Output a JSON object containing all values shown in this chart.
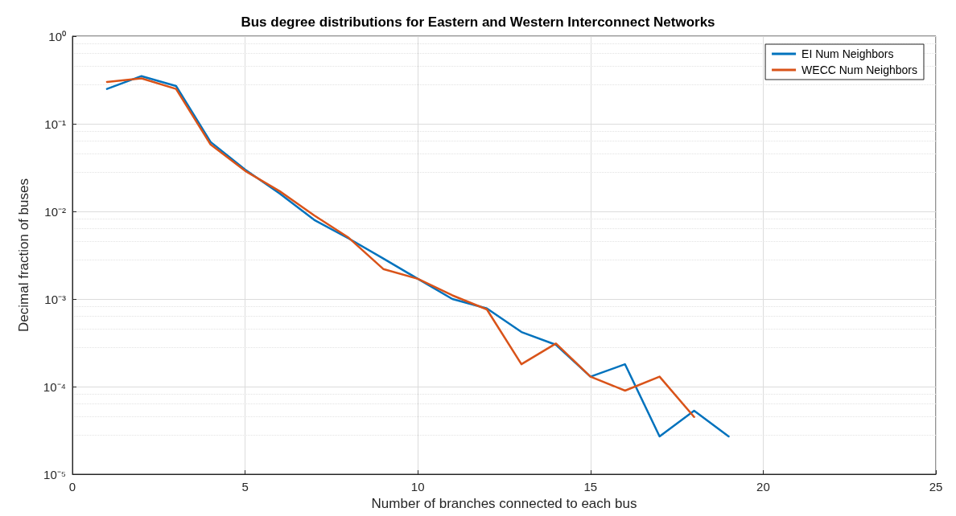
{
  "chart_data": {
    "type": "line",
    "title": "Bus degree distributions for Eastern and Western Interconnect Networks",
    "xlabel": "Number of branches connected to each bus",
    "ylabel": "Decimal fraction of buses",
    "log": "y",
    "grid": true,
    "legend": "top right",
    "marker": "none",
    "line_style": "solid",
    "xlim": [
      0,
      25
    ],
    "xticks": [
      0,
      5,
      10,
      15,
      20,
      25
    ],
    "ylim": [
      1e-05,
      1
    ],
    "yticks": [
      {
        "value": 1e-05,
        "label": "10⁻⁵"
      },
      {
        "value": 0.0001,
        "label": "10⁻⁴"
      },
      {
        "value": 0.001,
        "label": "10⁻³"
      },
      {
        "value": 0.01,
        "label": "10⁻²"
      },
      {
        "value": 0.1,
        "label": "10⁻¹"
      },
      {
        "value": 1,
        "label": "10⁰"
      }
    ],
    "series": [
      {
        "name": "EI Num Neighbors",
        "color": "#0072bd",
        "x": [
          1,
          2,
          3,
          4,
          5,
          6,
          7,
          8,
          9,
          10,
          11,
          12,
          13,
          14,
          15,
          16,
          17,
          18,
          19
        ],
        "values": [
          0.25,
          0.35,
          0.27,
          0.062,
          0.03,
          0.016,
          0.008,
          0.0049,
          0.0029,
          0.0017,
          0.001,
          0.00078,
          0.00042,
          0.0003,
          0.00013,
          0.00018,
          2.7e-05,
          5.3e-05,
          2.7e-05
        ]
      },
      {
        "name": "WECC Num Neighbors",
        "color": "#d95319",
        "x": [
          1,
          2,
          3,
          4,
          5,
          6,
          7,
          8,
          9,
          10,
          11,
          12,
          13,
          14,
          15,
          16,
          17,
          18
        ],
        "values": [
          0.3,
          0.33,
          0.25,
          0.058,
          0.029,
          0.017,
          0.009,
          0.005,
          0.0022,
          0.0017,
          0.0011,
          0.00076,
          0.00018,
          0.00031,
          0.00013,
          9e-05,
          0.00013,
          4.5e-05
        ]
      }
    ]
  }
}
